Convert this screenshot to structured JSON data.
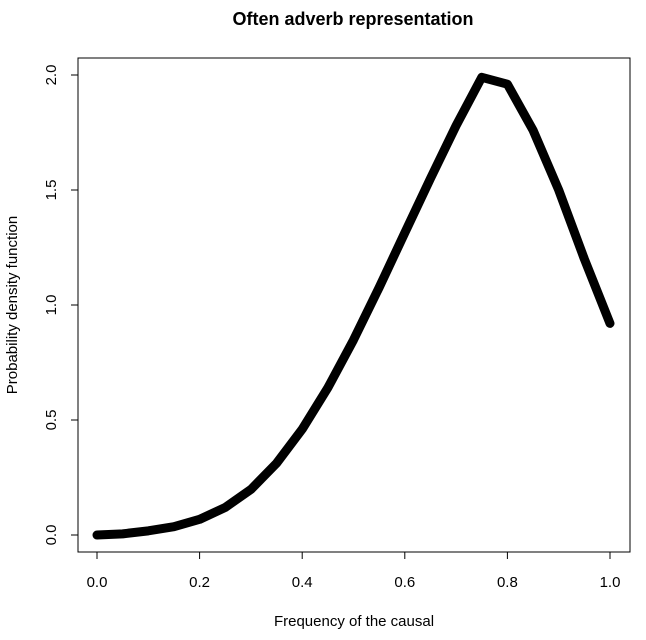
{
  "chart_data": {
    "type": "line",
    "title": "Often adverb representation",
    "xlabel": "Frequency of the causal",
    "ylabel": "Probability density function",
    "xlim": [
      0,
      1
    ],
    "ylim": [
      0,
      2
    ],
    "x_ticks": [
      0.0,
      0.2,
      0.4,
      0.6,
      0.8,
      1.0
    ],
    "x_tick_labels": [
      "0.0",
      "0.2",
      "0.4",
      "0.6",
      "0.8",
      "1.0"
    ],
    "y_ticks": [
      0.0,
      0.5,
      1.0,
      1.5,
      2.0
    ],
    "y_tick_labels": [
      "0.0",
      "0.5",
      "1.0",
      "1.5",
      "2.0"
    ],
    "grid": false,
    "legend": "none",
    "line_color": "#000000",
    "series": [
      {
        "x": [
          0.0,
          0.05,
          0.1,
          0.15,
          0.2,
          0.25,
          0.3,
          0.35,
          0.4,
          0.45,
          0.5,
          0.55,
          0.6,
          0.65,
          0.7,
          0.75,
          0.8,
          0.85,
          0.9,
          0.95,
          1.0
        ],
        "values": [
          0.0,
          0.005,
          0.018,
          0.036,
          0.068,
          0.12,
          0.198,
          0.312,
          0.46,
          0.64,
          0.848,
          1.076,
          1.314,
          1.55,
          1.78,
          1.99,
          1.96,
          1.76,
          1.5,
          1.2,
          0.92
        ]
      }
    ]
  }
}
